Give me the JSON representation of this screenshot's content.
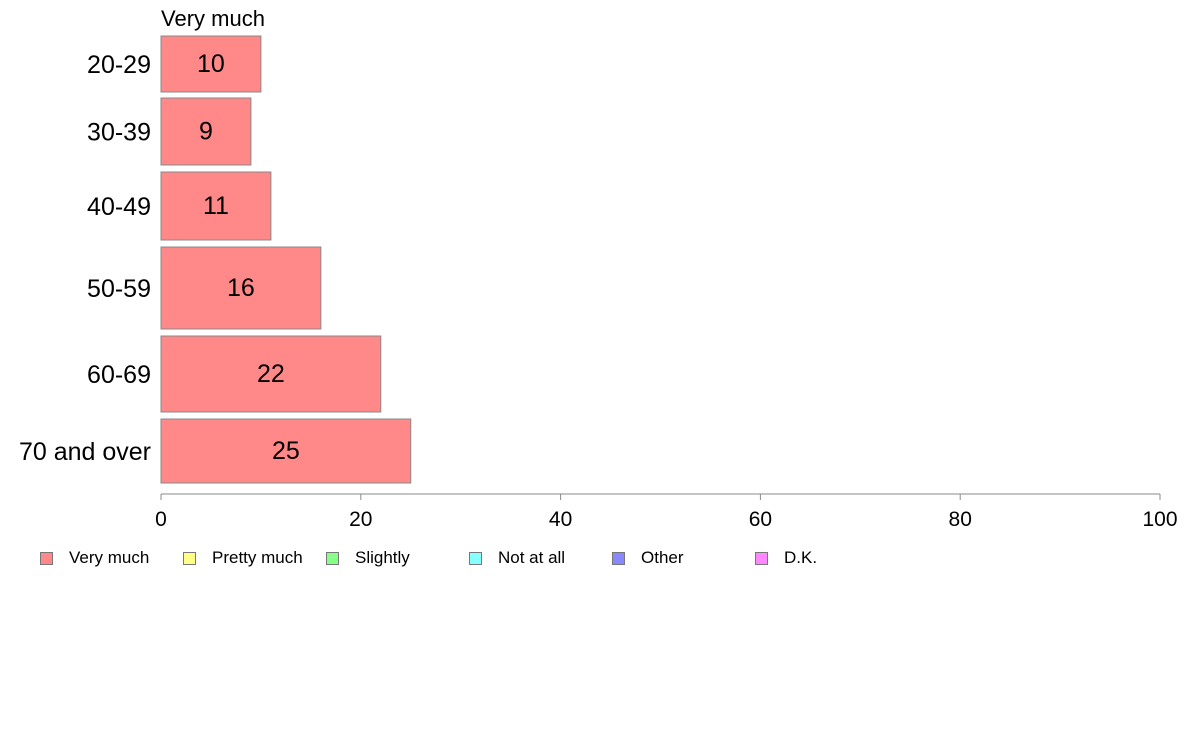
{
  "chart_data": {
    "type": "bar",
    "orientation": "horizontal",
    "title": "Very much",
    "categories": [
      "20-29",
      "30-39",
      "40-49",
      "50-59",
      "60-69",
      "70 and over"
    ],
    "series": [
      {
        "name": "Very much",
        "color": "#ff8888",
        "values": [
          10,
          9,
          11,
          16,
          22,
          25
        ]
      }
    ],
    "data_labels": [
      "10",
      "9",
      "11",
      "16",
      "22",
      "25"
    ],
    "xlim": [
      0,
      100
    ],
    "xticks": [
      0,
      20,
      40,
      60,
      80,
      100
    ],
    "grid": false,
    "legend_position": "bottom",
    "legend": [
      {
        "label": "Very much",
        "color": "#ff8888"
      },
      {
        "label": "Pretty much",
        "color": "#ffff88"
      },
      {
        "label": "Slightly",
        "color": "#88ff88"
      },
      {
        "label": "Not at all",
        "color": "#88ffff"
      },
      {
        "label": "Other",
        "color": "#8888ff"
      },
      {
        "label": "D.K.",
        "color": "#ff88ff"
      }
    ]
  }
}
